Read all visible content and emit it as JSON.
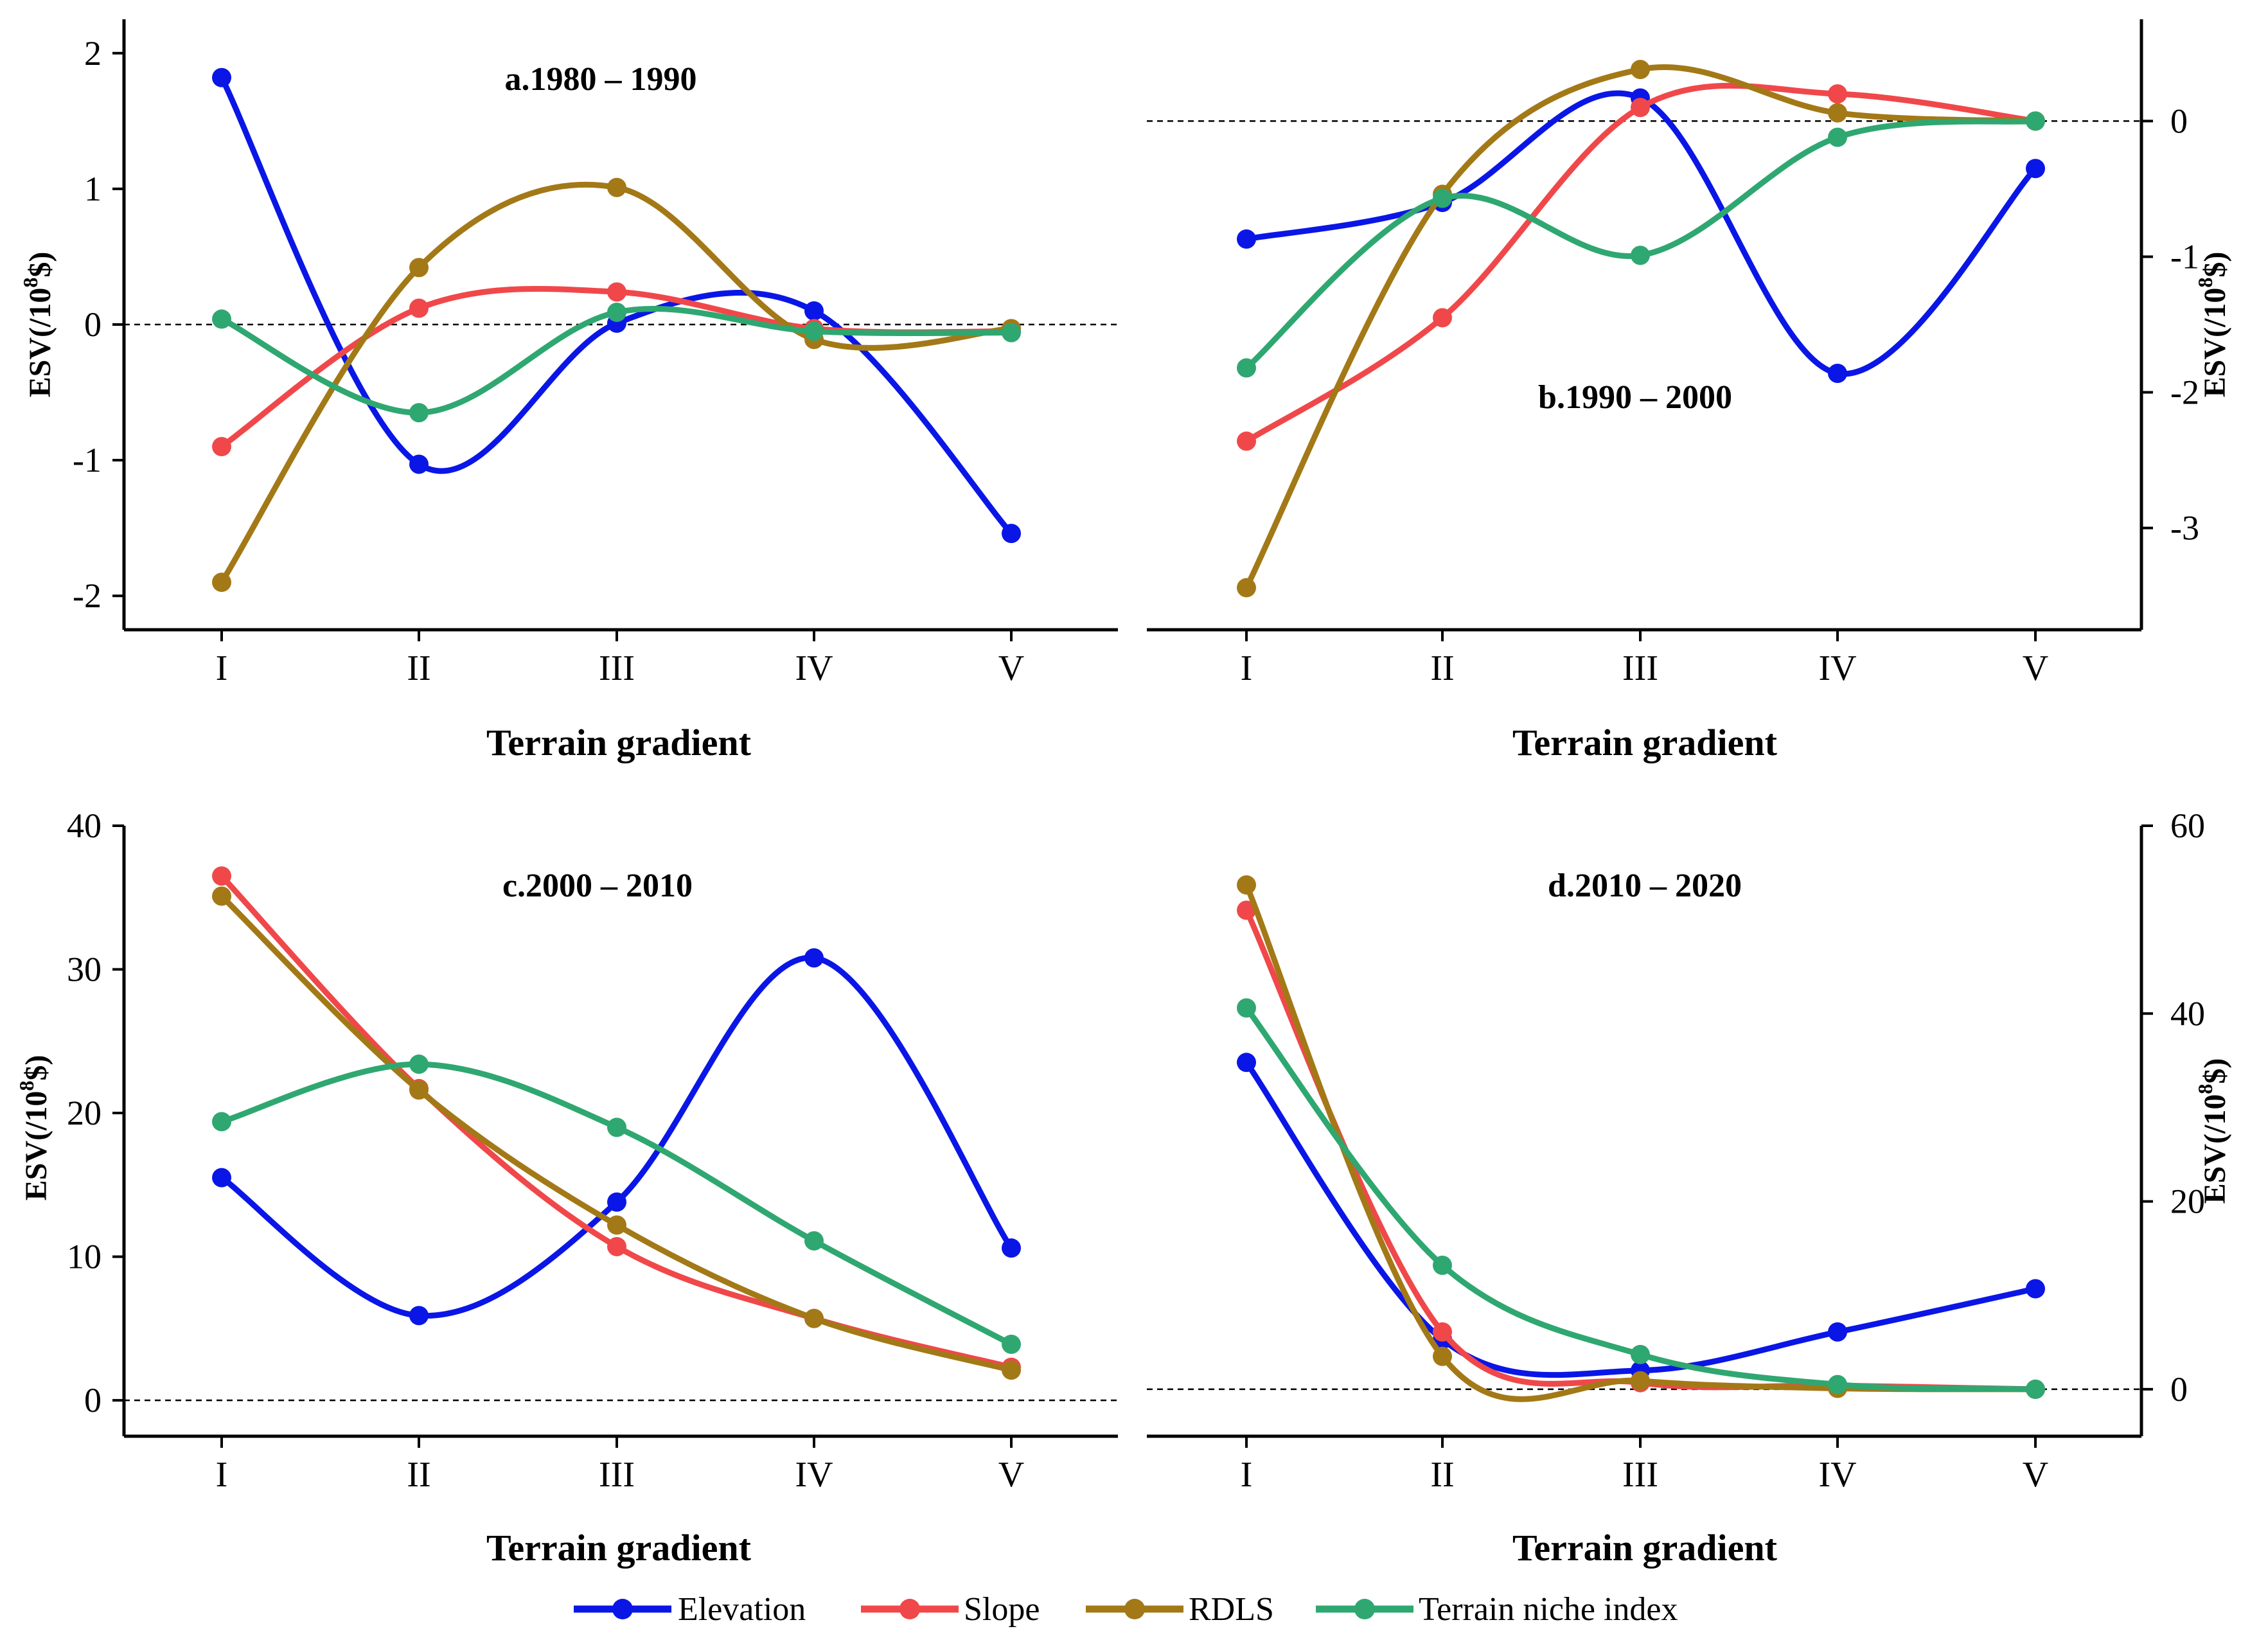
{
  "figure": {
    "x_axis_title": "Terrain gradient",
    "y_axis_title": "ESV(/10⁸$)",
    "y_axis_base": "ESV(/10",
    "y_axis_exp": "8",
    "y_axis_unit": "$)"
  },
  "legend": [
    {
      "name": "Elevation",
      "color": "#0a16e6"
    },
    {
      "name": "Slope",
      "color": "#f0484a"
    },
    {
      "name": "RDLS",
      "color": "#a37917"
    },
    {
      "name": "Terrain niche index",
      "color": "#2fa771"
    }
  ],
  "chart_data": [
    {
      "type": "line",
      "title": "a.1980 – 1990",
      "categories": [
        "I",
        "II",
        "III",
        "IV",
        "V"
      ],
      "xlabel": "Terrain gradient",
      "ylabel": "ESV(/10⁸$)",
      "yaxis_side": "left",
      "ylim": [
        -2.25,
        2.25
      ],
      "yticks": [
        -2,
        -1,
        0,
        1,
        2
      ],
      "yticklabels": [
        "-2",
        "-1",
        "0",
        "1",
        "2"
      ],
      "reference_line": 0,
      "series": [
        {
          "name": "Elevation",
          "values": [
            1.82,
            -1.03,
            0.01,
            0.1,
            -1.54
          ]
        },
        {
          "name": "Slope",
          "values": [
            -0.9,
            0.12,
            0.24,
            -0.03,
            -0.05
          ]
        },
        {
          "name": "RDLS",
          "values": [
            -1.9,
            0.42,
            1.01,
            -0.11,
            -0.03
          ]
        },
        {
          "name": "Terrain niche index",
          "values": [
            0.04,
            -0.65,
            0.09,
            -0.05,
            -0.06
          ]
        }
      ]
    },
    {
      "type": "line",
      "title": "b.1990 – 2000",
      "categories": [
        "I",
        "II",
        "III",
        "IV",
        "V"
      ],
      "xlabel": "Terrain gradient",
      "ylabel": "ESV(/10⁸$)",
      "yaxis_side": "right",
      "ylim": [
        -3.75,
        0.75
      ],
      "yticks": [
        -3,
        -2,
        -1,
        0
      ],
      "yticklabels": [
        "-3",
        "-2",
        "-1",
        "0"
      ],
      "reference_line": 0,
      "series": [
        {
          "name": "Elevation",
          "values": [
            -0.87,
            -0.6,
            0.17,
            -1.86,
            -0.35
          ]
        },
        {
          "name": "Slope",
          "values": [
            -2.36,
            -1.45,
            0.1,
            0.2,
            0.0
          ]
        },
        {
          "name": "RDLS",
          "values": [
            -3.44,
            -0.54,
            0.38,
            0.06,
            0.0
          ]
        },
        {
          "name": "Terrain niche index",
          "values": [
            -1.82,
            -0.57,
            -0.99,
            -0.12,
            0.0
          ]
        }
      ]
    },
    {
      "type": "line",
      "title": "c.2000 – 2010",
      "categories": [
        "I",
        "II",
        "III",
        "IV",
        "V"
      ],
      "xlabel": "Terrain gradient",
      "ylabel": "ESV(/10⁸$)",
      "yaxis_side": "left",
      "ylim": [
        -2.5,
        40
      ],
      "yticks": [
        0,
        10,
        20,
        30,
        40
      ],
      "yticklabels": [
        "0",
        "10",
        "20",
        "30",
        "40"
      ],
      "reference_line": 0,
      "series": [
        {
          "name": "Elevation",
          "values": [
            15.5,
            5.9,
            13.8,
            30.8,
            10.6
          ]
        },
        {
          "name": "Slope",
          "values": [
            36.5,
            21.7,
            10.7,
            5.7,
            2.3
          ]
        },
        {
          "name": "RDLS",
          "values": [
            35.1,
            21.6,
            12.2,
            5.7,
            2.1
          ]
        },
        {
          "name": "Terrain niche index",
          "values": [
            19.4,
            23.4,
            19.0,
            11.1,
            3.9
          ]
        }
      ]
    },
    {
      "type": "line",
      "title": "d.2010 – 2020",
      "categories": [
        "I",
        "II",
        "III",
        "IV",
        "V"
      ],
      "xlabel": "Terrain gradient",
      "ylabel": "ESV(/10⁸$)",
      "yaxis_side": "right",
      "ylim": [
        -5,
        60
      ],
      "yticks": [
        0,
        20,
        40,
        60
      ],
      "yticklabels": [
        "0",
        "20",
        "40",
        "60"
      ],
      "reference_line": 0,
      "series": [
        {
          "name": "Elevation",
          "values": [
            34.8,
            5.3,
            2.0,
            6.1,
            10.7
          ]
        },
        {
          "name": "Slope",
          "values": [
            51.0,
            6.1,
            0.7,
            0.4,
            0.0
          ]
        },
        {
          "name": "RDLS",
          "values": [
            53.7,
            3.5,
            0.9,
            0.1,
            0.0
          ]
        },
        {
          "name": "Terrain niche index",
          "values": [
            40.6,
            13.2,
            3.7,
            0.5,
            0.0
          ]
        }
      ]
    }
  ]
}
